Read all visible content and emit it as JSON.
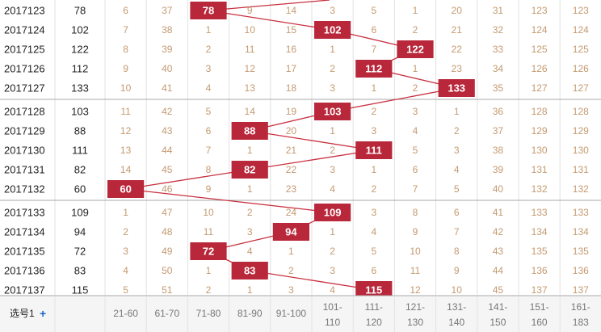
{
  "footer": {
    "selector_label": "选号1",
    "plus_label": "+",
    "column_labels": [
      "21-60",
      "61-70",
      "71-80",
      "81-90",
      "91-100",
      "101-110",
      "111-120",
      "121-130",
      "131-140",
      "141-150",
      "151-160",
      "161-183"
    ]
  },
  "rows": [
    {
      "period": "2017123",
      "value": "78",
      "hit": 2,
      "cells": [
        "6",
        "37",
        "78",
        "9",
        "14",
        "3",
        "5",
        "1",
        "20",
        "31",
        "123",
        "123"
      ]
    },
    {
      "period": "2017124",
      "value": "102",
      "hit": 5,
      "cells": [
        "7",
        "38",
        "1",
        "10",
        "15",
        "102",
        "6",
        "2",
        "21",
        "32",
        "124",
        "124"
      ]
    },
    {
      "period": "2017125",
      "value": "122",
      "hit": 7,
      "cells": [
        "8",
        "39",
        "2",
        "11",
        "16",
        "1",
        "7",
        "122",
        "22",
        "33",
        "125",
        "125"
      ]
    },
    {
      "period": "2017126",
      "value": "112",
      "hit": 6,
      "cells": [
        "9",
        "40",
        "3",
        "12",
        "17",
        "2",
        "112",
        "1",
        "23",
        "34",
        "126",
        "126"
      ]
    },
    {
      "period": "2017127",
      "value": "133",
      "hit": 8,
      "cells": [
        "10",
        "41",
        "4",
        "13",
        "18",
        "3",
        "1",
        "2",
        "133",
        "35",
        "127",
        "127"
      ]
    },
    {
      "period": "2017128",
      "value": "103",
      "hit": 5,
      "cells": [
        "11",
        "42",
        "5",
        "14",
        "19",
        "103",
        "2",
        "3",
        "1",
        "36",
        "128",
        "128"
      ]
    },
    {
      "period": "2017129",
      "value": "88",
      "hit": 3,
      "cells": [
        "12",
        "43",
        "6",
        "88",
        "20",
        "1",
        "3",
        "4",
        "2",
        "37",
        "129",
        "129"
      ]
    },
    {
      "period": "2017130",
      "value": "111",
      "hit": 6,
      "cells": [
        "13",
        "44",
        "7",
        "1",
        "21",
        "2",
        "111",
        "5",
        "3",
        "38",
        "130",
        "130"
      ]
    },
    {
      "period": "2017131",
      "value": "82",
      "hit": 3,
      "cells": [
        "14",
        "45",
        "8",
        "82",
        "22",
        "3",
        "1",
        "6",
        "4",
        "39",
        "131",
        "131"
      ]
    },
    {
      "period": "2017132",
      "value": "60",
      "hit": 0,
      "cells": [
        "60",
        "46",
        "9",
        "1",
        "23",
        "4",
        "2",
        "7",
        "5",
        "40",
        "132",
        "132"
      ]
    },
    {
      "period": "2017133",
      "value": "109",
      "hit": 5,
      "cells": [
        "1",
        "47",
        "10",
        "2",
        "24",
        "109",
        "3",
        "8",
        "6",
        "41",
        "133",
        "133"
      ]
    },
    {
      "period": "2017134",
      "value": "94",
      "hit": 4,
      "cells": [
        "2",
        "48",
        "11",
        "3",
        "94",
        "1",
        "4",
        "9",
        "7",
        "42",
        "134",
        "134"
      ]
    },
    {
      "period": "2017135",
      "value": "72",
      "hit": 2,
      "cells": [
        "3",
        "49",
        "72",
        "4",
        "1",
        "2",
        "5",
        "10",
        "8",
        "43",
        "135",
        "135"
      ]
    },
    {
      "period": "2017136",
      "value": "83",
      "hit": 3,
      "cells": [
        "4",
        "50",
        "1",
        "83",
        "2",
        "3",
        "6",
        "11",
        "9",
        "44",
        "136",
        "136"
      ]
    },
    {
      "period": "2017137",
      "value": "115",
      "hit": 6,
      "cells": [
        "5",
        "51",
        "2",
        "1",
        "3",
        "4",
        "115",
        "12",
        "10",
        "45",
        "137",
        "137"
      ]
    }
  ],
  "colors": {
    "hit": "#b8273a",
    "line": "#c8303e",
    "cell_text": "#c49a70"
  }
}
